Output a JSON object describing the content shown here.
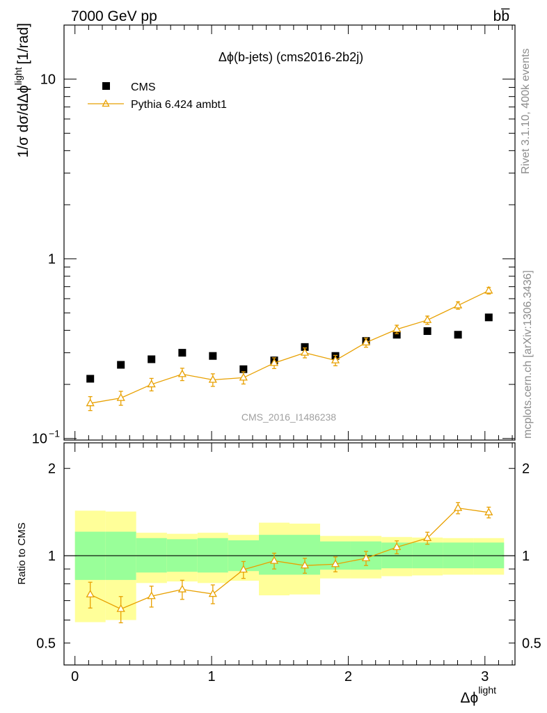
{
  "header": {
    "left": "7000 GeV pp",
    "right": "bb̅"
  },
  "side_labels": {
    "rivet": "Rivet 3.1.10,  400k events",
    "mcplots": "mcplots.cern.ch [arXiv:1306.3436]"
  },
  "chart_data": [
    {
      "type": "scatter",
      "title": "Δϕ(b-jets) (cms2016-2b2j)",
      "watermark": "CMS_2016_I1486238",
      "ylabel": "1/σ dσ/dΔϕ",
      "ylabel_sup": "light",
      "ylabel_unit": "[1/rad]",
      "yscale": "log",
      "xlim": [
        -0.08,
        3.22
      ],
      "ylim": [
        0.098,
        20
      ],
      "y_ticks": [
        {
          "value": 0.1,
          "label": "10",
          "sup": "−1"
        },
        {
          "value": 1,
          "label": "1",
          "sup": ""
        },
        {
          "value": 10,
          "label": "10",
          "sup": ""
        }
      ],
      "legend": {
        "position": "top-left",
        "entries": [
          "CMS",
          "Pythia 6.424 ambt1"
        ]
      },
      "series": [
        {
          "name": "CMS",
          "marker": "square",
          "color": "#000000",
          "x": [
            0.112,
            0.336,
            0.56,
            0.785,
            1.009,
            1.233,
            1.458,
            1.682,
            1.906,
            2.13,
            2.355,
            2.579,
            2.803,
            3.028
          ],
          "y": [
            0.215,
            0.257,
            0.276,
            0.3,
            0.288,
            0.243,
            0.272,
            0.323,
            0.288,
            0.349,
            0.378,
            0.396,
            0.378,
            0.472
          ]
        },
        {
          "name": "Pythia 6.424 ambt1",
          "marker": "triangle",
          "color": "#e8a000",
          "x": [
            0.112,
            0.336,
            0.56,
            0.785,
            1.009,
            1.233,
            1.458,
            1.682,
            1.906,
            2.13,
            2.355,
            2.579,
            2.803,
            3.028
          ],
          "y": [
            0.157,
            0.168,
            0.2,
            0.228,
            0.212,
            0.218,
            0.263,
            0.3,
            0.272,
            0.342,
            0.405,
            0.456,
            0.55,
            0.665
          ],
          "yerr": [
            0.014,
            0.015,
            0.016,
            0.018,
            0.017,
            0.017,
            0.018,
            0.019,
            0.018,
            0.02,
            0.022,
            0.024,
            0.026,
            0.028
          ]
        }
      ]
    },
    {
      "type": "scatter",
      "ylabel": "Ratio to CMS",
      "xlabel": "Δϕ",
      "xlabel_sup": "light",
      "yscale": "log",
      "xlim": [
        -0.08,
        3.22
      ],
      "ylim": [
        0.42,
        2.45
      ],
      "x_ticks": [
        0,
        1,
        2,
        3
      ],
      "y_ticks": [
        {
          "value": 0.5,
          "label": "0.5"
        },
        {
          "value": 1,
          "label": "1"
        },
        {
          "value": 2,
          "label": "2"
        }
      ],
      "bands": [
        {
          "x0": 0.0,
          "x1": 0.224,
          "inner": [
            0.825,
            1.21
          ],
          "outer": [
            0.59,
            1.43
          ]
        },
        {
          "x0": 0.224,
          "x1": 0.448,
          "inner": [
            0.825,
            1.21
          ],
          "outer": [
            0.6,
            1.42
          ]
        },
        {
          "x0": 0.448,
          "x1": 0.673,
          "inner": [
            0.875,
            1.15
          ],
          "outer": [
            0.805,
            1.2
          ]
        },
        {
          "x0": 0.673,
          "x1": 0.897,
          "inner": [
            0.88,
            1.14
          ],
          "outer": [
            0.815,
            1.19
          ]
        },
        {
          "x0": 0.897,
          "x1": 1.121,
          "inner": [
            0.875,
            1.15
          ],
          "outer": [
            0.805,
            1.2
          ]
        },
        {
          "x0": 1.121,
          "x1": 1.346,
          "inner": [
            0.885,
            1.13
          ],
          "outer": [
            0.82,
            1.18
          ]
        },
        {
          "x0": 1.346,
          "x1": 1.57,
          "inner": [
            0.86,
            1.18
          ],
          "outer": [
            0.73,
            1.3
          ]
        },
        {
          "x0": 1.57,
          "x1": 1.794,
          "inner": [
            0.86,
            1.18
          ],
          "outer": [
            0.735,
            1.29
          ]
        },
        {
          "x0": 1.794,
          "x1": 2.018,
          "inner": [
            0.895,
            1.12
          ],
          "outer": [
            0.835,
            1.17
          ]
        },
        {
          "x0": 2.018,
          "x1": 2.243,
          "inner": [
            0.895,
            1.12
          ],
          "outer": [
            0.835,
            1.17
          ]
        },
        {
          "x0": 2.243,
          "x1": 2.467,
          "inner": [
            0.905,
            1.11
          ],
          "outer": [
            0.85,
            1.16
          ]
        },
        {
          "x0": 2.467,
          "x1": 2.691,
          "inner": [
            0.905,
            1.11
          ],
          "outer": [
            0.855,
            1.155
          ]
        },
        {
          "x0": 2.691,
          "x1": 2.915,
          "inner": [
            0.905,
            1.11
          ],
          "outer": [
            0.86,
            1.15
          ]
        },
        {
          "x0": 2.915,
          "x1": 3.14,
          "inner": [
            0.905,
            1.11
          ],
          "outer": [
            0.86,
            1.15
          ]
        }
      ],
      "series": [
        {
          "name": "Pythia 6.424 ambt1",
          "marker": "triangle",
          "color": "#e8a000",
          "x": [
            0.112,
            0.336,
            0.56,
            0.785,
            1.009,
            1.233,
            1.458,
            1.682,
            1.906,
            2.13,
            2.355,
            2.579,
            2.803,
            3.028
          ],
          "y": [
            0.735,
            0.655,
            0.725,
            0.765,
            0.738,
            0.895,
            0.96,
            0.925,
            0.935,
            0.98,
            1.07,
            1.15,
            1.46,
            1.41
          ],
          "yerr": [
            0.075,
            0.068,
            0.06,
            0.058,
            0.055,
            0.06,
            0.06,
            0.055,
            0.055,
            0.055,
            0.055,
            0.055,
            0.065,
            0.06
          ]
        }
      ]
    }
  ],
  "colors": {
    "band_inner": "#99ff99",
    "band_outer": "#ffff99",
    "mc": "#e8a000",
    "data": "#000000",
    "watermark": "#a0a0a0"
  }
}
